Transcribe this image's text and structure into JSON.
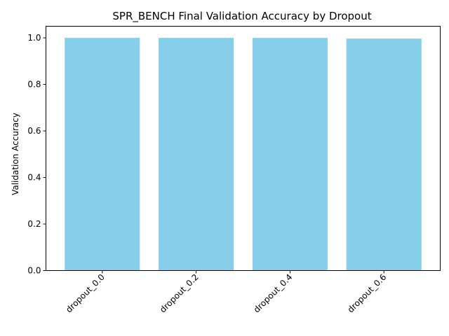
{
  "chart_data": {
    "type": "bar",
    "title": "SPR_BENCH Final Validation Accuracy by Dropout",
    "xlabel": "",
    "ylabel": "Validation Accuracy",
    "categories": [
      "dropout_0.0",
      "dropout_0.2",
      "dropout_0.4",
      "dropout_0.6"
    ],
    "values": [
      1.0,
      1.0,
      1.0,
      0.997
    ],
    "ylim": [
      0,
      1.05
    ],
    "yticks": [
      0.0,
      0.2,
      0.4,
      0.6,
      0.8,
      1.0
    ],
    "ytick_labels": [
      "0.0",
      "0.2",
      "0.4",
      "0.6",
      "0.8",
      "1.0"
    ],
    "bar_color": "#87ceeb",
    "grid": false,
    "xtick_rotation": "45 degrees"
  }
}
